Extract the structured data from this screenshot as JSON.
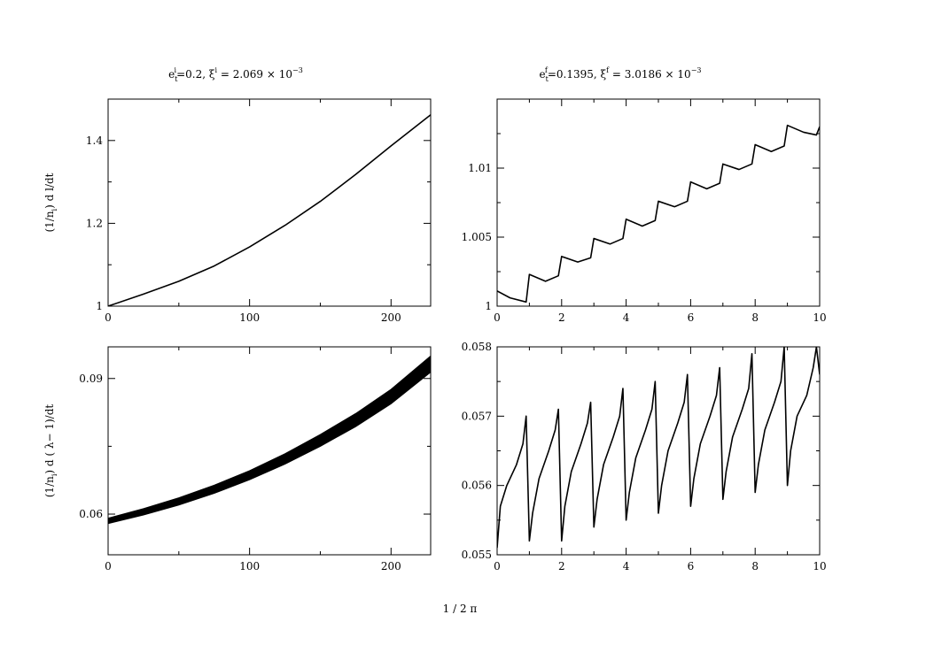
{
  "figure": {
    "shared_xlabel": "1 / 2 π"
  },
  "chart_data": [
    {
      "id": "top-left",
      "type": "line",
      "title_parts": [
        "e",
        "t",
        "i",
        "=0.2,  ξ",
        "i",
        " = 2.069  × 10",
        "−3"
      ],
      "ylabel_parts": [
        "(1/n",
        "i",
        ") d l/dt"
      ],
      "xlim": [
        0,
        228
      ],
      "ylim": [
        1.0,
        1.5
      ],
      "xticks": [
        0,
        100,
        200
      ],
      "xtick_labels": [
        "0",
        "100",
        "200"
      ],
      "yticks": [
        1.0,
        1.2,
        1.4
      ],
      "ytick_labels": [
        "1",
        "1.2",
        "1.4"
      ],
      "series": [
        {
          "x": [
            0,
            25,
            50,
            75,
            100,
            125,
            150,
            175,
            200,
            228
          ],
          "y": [
            1.0,
            1.029,
            1.06,
            1.097,
            1.143,
            1.195,
            1.253,
            1.318,
            1.387,
            1.462
          ]
        }
      ]
    },
    {
      "id": "top-right",
      "type": "line",
      "title_parts": [
        "e",
        "t",
        "f",
        "=0.1395,  ξ",
        "f",
        " = 3.0186  × 10",
        "−3"
      ],
      "ylabel_parts": [],
      "xlim": [
        0,
        10
      ],
      "ylim": [
        1.0,
        1.015
      ],
      "xticks": [
        0,
        2,
        4,
        6,
        8,
        10
      ],
      "xtick_labels": [
        "0",
        "2",
        "4",
        "6",
        "8",
        "10"
      ],
      "yticks": [
        1.0,
        1.005,
        1.01
      ],
      "ytick_labels": [
        "1",
        "1.005",
        "1.01"
      ],
      "series": [
        {
          "x": [
            0,
            0.4,
            0.9,
            1.0,
            1.5,
            1.9,
            2.0,
            2.5,
            2.9,
            3.0,
            3.5,
            3.9,
            4.0,
            4.5,
            4.9,
            5.0,
            5.5,
            5.9,
            6.0,
            6.5,
            6.9,
            7.0,
            7.5,
            7.9,
            8.0,
            8.5,
            8.9,
            9.0,
            9.5,
            9.9,
            10.0
          ],
          "y": [
            1.0011,
            1.0006,
            1.0003,
            1.0023,
            1.0018,
            1.0022,
            1.0036,
            1.0032,
            1.0035,
            1.0049,
            1.0045,
            1.0049,
            1.0063,
            1.0058,
            1.0062,
            1.0076,
            1.0072,
            1.0076,
            1.009,
            1.0085,
            1.0089,
            1.0103,
            1.0099,
            1.0103,
            1.0117,
            1.0112,
            1.0116,
            1.0131,
            1.0126,
            1.0124,
            1.013
          ]
        }
      ]
    },
    {
      "id": "bottom-left",
      "type": "area",
      "title_parts": [],
      "ylabel_parts": [
        "(1/n",
        "i",
        ") d ( λ− 1)/dt"
      ],
      "xlim": [
        0,
        228
      ],
      "ylim": [
        0.051,
        0.097
      ],
      "xticks": [
        0,
        100,
        200
      ],
      "xtick_labels": [
        "0",
        "100",
        "200"
      ],
      "yticks": [
        0.06,
        0.09
      ],
      "ytick_labels": [
        "0.06",
        "0.09"
      ],
      "series": [
        {
          "x": [
            0,
            25,
            50,
            75,
            100,
            125,
            150,
            175,
            200,
            228
          ],
          "y": [
            0.0585,
            0.0605,
            0.0628,
            0.0655,
            0.0686,
            0.0722,
            0.0763,
            0.0808,
            0.086,
            0.0932
          ],
          "band_width": [
            0.0012,
            0.0014,
            0.0016,
            0.0018,
            0.002,
            0.0023,
            0.0026,
            0.0029,
            0.0032,
            0.0036
          ]
        }
      ]
    },
    {
      "id": "bottom-right",
      "type": "line",
      "title_parts": [],
      "ylabel_parts": [],
      "xlim": [
        0,
        10
      ],
      "ylim": [
        0.055,
        0.058
      ],
      "xticks": [
        0,
        2,
        4,
        6,
        8,
        10
      ],
      "xtick_labels": [
        "0",
        "2",
        "4",
        "6",
        "8",
        "10"
      ],
      "yticks": [
        0.055,
        0.056,
        0.057,
        0.058
      ],
      "ytick_labels": [
        "0.055",
        "0.056",
        "0.057",
        "0.058"
      ],
      "series": [
        {
          "x": [
            0,
            0.1,
            0.3,
            0.6,
            0.8,
            0.9,
            1.0,
            1.1,
            1.3,
            1.6,
            1.8,
            1.9,
            2.0,
            2.1,
            2.3,
            2.6,
            2.8,
            2.9,
            3.0,
            3.1,
            3.3,
            3.6,
            3.8,
            3.9,
            4.0,
            4.1,
            4.3,
            4.6,
            4.8,
            4.9,
            5.0,
            5.1,
            5.3,
            5.6,
            5.8,
            5.9,
            6.0,
            6.1,
            6.3,
            6.6,
            6.8,
            6.9,
            7.0,
            7.1,
            7.3,
            7.6,
            7.8,
            7.9,
            8.0,
            8.1,
            8.3,
            8.6,
            8.8,
            8.9,
            9.0,
            9.1,
            9.3,
            9.6,
            9.8,
            9.9,
            10.0
          ],
          "y": [
            0.0551,
            0.0557,
            0.056,
            0.0563,
            0.0566,
            0.057,
            0.0552,
            0.0556,
            0.0561,
            0.0565,
            0.0568,
            0.0571,
            0.0552,
            0.0557,
            0.0562,
            0.0566,
            0.0569,
            0.0572,
            0.0554,
            0.0558,
            0.0563,
            0.0567,
            0.057,
            0.0574,
            0.0555,
            0.0559,
            0.0564,
            0.0568,
            0.0571,
            0.0575,
            0.0556,
            0.056,
            0.0565,
            0.0569,
            0.0572,
            0.0576,
            0.0557,
            0.0561,
            0.0566,
            0.057,
            0.0573,
            0.0577,
            0.0558,
            0.0562,
            0.0567,
            0.0571,
            0.0574,
            0.0579,
            0.0559,
            0.0563,
            0.0568,
            0.0572,
            0.0575,
            0.058,
            0.056,
            0.0565,
            0.057,
            0.0573,
            0.0577,
            0.058,
            0.0576
          ]
        }
      ]
    }
  ]
}
